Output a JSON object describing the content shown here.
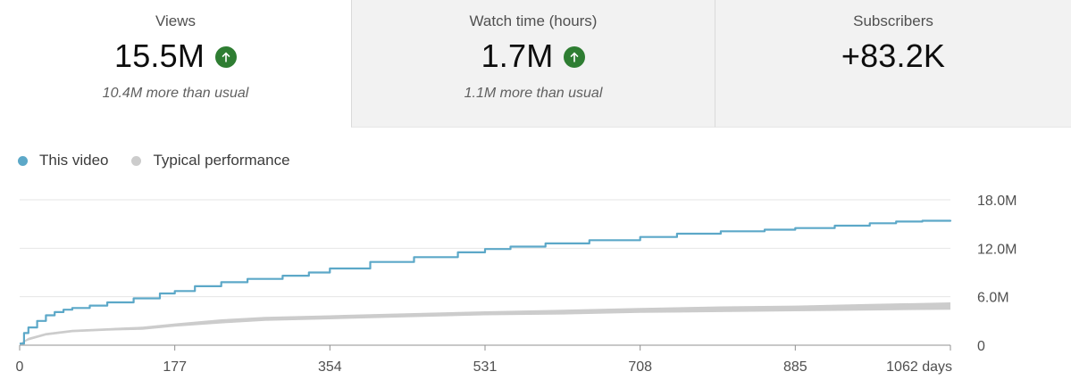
{
  "cards": [
    {
      "title": "Views",
      "value": "15.5M",
      "trend_icon": "arrow-up-circle-icon",
      "subtitle": "10.4M more than usual"
    },
    {
      "title": "Watch time (hours)",
      "value": "1.7M",
      "trend_icon": "arrow-up-circle-icon",
      "subtitle": "1.1M more than usual"
    },
    {
      "title": "Subscribers",
      "value": "+83.2K",
      "trend_icon": "",
      "subtitle": ""
    }
  ],
  "colors": {
    "this_video": "#5ca8c8",
    "typical": "#cccccc",
    "trend_up": "#2e7d32"
  },
  "legend": [
    {
      "label": "This video",
      "color": "#5ca8c8"
    },
    {
      "label": "Typical performance",
      "color": "#cccccc"
    }
  ],
  "chart_data": {
    "type": "line",
    "x_tick_labels": [
      "0",
      "177",
      "354",
      "531",
      "708",
      "885",
      "1062 days"
    ],
    "x_ticks": [
      0,
      177,
      354,
      531,
      708,
      885,
      1062
    ],
    "y_tick_labels": [
      "0",
      "6.0M",
      "12.0M",
      "18.0M"
    ],
    "y_ticks": [
      0,
      6,
      12,
      18
    ],
    "xlim": [
      0,
      1062
    ],
    "ylim": [
      0,
      18
    ],
    "y_unit": "M",
    "grid": true,
    "legend_position": "top-left",
    "series": [
      {
        "name": "This video",
        "color": "#5ca8c8",
        "x": [
          0,
          5,
          10,
          20,
          30,
          40,
          50,
          60,
          80,
          100,
          130,
          160,
          177,
          200,
          230,
          260,
          300,
          330,
          354,
          400,
          450,
          500,
          531,
          560,
          600,
          650,
          708,
          750,
          800,
          850,
          885,
          930,
          970,
          1000,
          1030,
          1062
        ],
        "y": [
          0.2,
          1.5,
          2.2,
          3.0,
          3.7,
          4.1,
          4.4,
          4.6,
          4.9,
          5.3,
          5.8,
          6.4,
          6.7,
          7.3,
          7.8,
          8.2,
          8.6,
          9.0,
          9.5,
          10.3,
          10.9,
          11.5,
          11.9,
          12.2,
          12.6,
          13.0,
          13.4,
          13.8,
          14.1,
          14.3,
          14.5,
          14.8,
          15.1,
          15.3,
          15.4,
          15.5
        ]
      },
      {
        "name": "Typical performance",
        "color": "#cccccc",
        "x": [
          0,
          10,
          30,
          60,
          100,
          140,
          177,
          230,
          280,
          354,
          420,
          531,
          620,
          708,
          800,
          885,
          970,
          1062
        ],
        "y_low": [
          0.1,
          0.6,
          1.2,
          1.6,
          1.8,
          1.9,
          2.3,
          2.7,
          3.0,
          3.2,
          3.4,
          3.7,
          3.8,
          4.0,
          4.1,
          4.2,
          4.3,
          4.4
        ],
        "y_high": [
          0.2,
          0.9,
          1.5,
          1.9,
          2.1,
          2.3,
          2.7,
          3.2,
          3.5,
          3.7,
          3.9,
          4.2,
          4.4,
          4.6,
          4.8,
          4.9,
          5.1,
          5.3
        ]
      }
    ]
  }
}
